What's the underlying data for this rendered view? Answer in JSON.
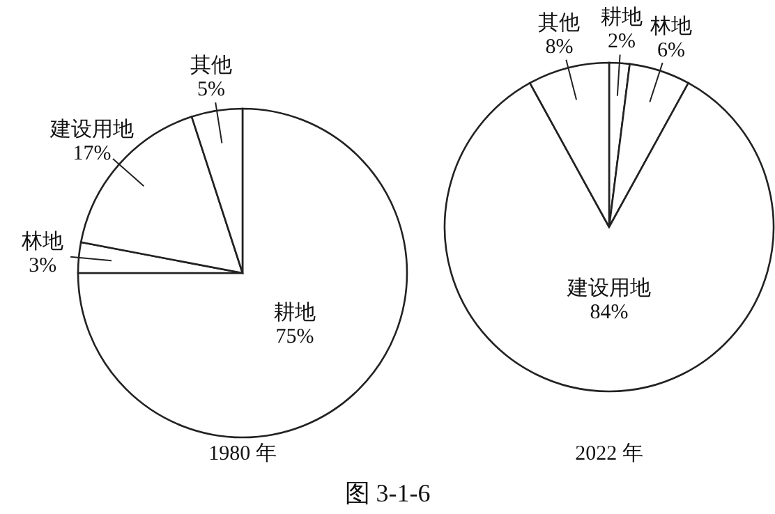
{
  "chart_data": [
    {
      "type": "pie",
      "title": "1980 年",
      "categories": [
        "耕地",
        "林地",
        "建设用地",
        "其他"
      ],
      "values": [
        75,
        3,
        17,
        5
      ],
      "value_labels": [
        "75%",
        "3%",
        "17%",
        "5%"
      ],
      "colors": [
        "#ffffff",
        "#ffffff",
        "#ffffff",
        "#ffffff"
      ]
    },
    {
      "type": "pie",
      "title": "2022 年",
      "categories": [
        "耕地",
        "林地",
        "建设用地",
        "其他"
      ],
      "values": [
        2,
        6,
        84,
        8
      ],
      "value_labels": [
        "2%",
        "6%",
        "84%",
        "8%"
      ],
      "colors": [
        "#ffffff",
        "#ffffff",
        "#ffffff",
        "#ffffff"
      ],
      "annotations": [
        "图 3-1-6"
      ]
    }
  ]
}
